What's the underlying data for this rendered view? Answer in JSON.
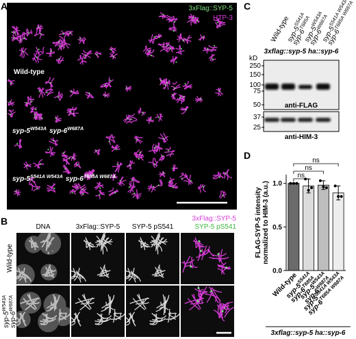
{
  "panel_a": {
    "letter": "A",
    "channels": [
      "3xFlag::SYP-5",
      "HTP-3"
    ],
    "genotypes": [
      "Wild-type",
      [
        {
          "gene": "syp-5",
          "allele": "W543A"
        },
        {
          "gene": "syp-6",
          "allele": "W687A"
        }
      ],
      [
        {
          "gene": "syp-5",
          "allele": "S541A W543A"
        },
        {
          "gene": "syp-6",
          "allele": "T685A W687A"
        }
      ]
    ]
  },
  "panel_b": {
    "letter": "B",
    "columns": [
      "DNA",
      "3xFlag::SYP-5",
      "SYP-5 pS541"
    ],
    "merge": [
      "3xFlag::SYP-5",
      "SYP-5 pS541"
    ],
    "rows": [
      "Wild-type",
      [
        {
          "gene": "syp-5",
          "allele": "W543A"
        },
        {
          "gene": "syp-6",
          "allele": "W687A"
        }
      ]
    ]
  },
  "panel_c": {
    "letter": "C",
    "lanes": [
      "Wild-type",
      [
        {
          "gene": "syp-5",
          "allele": "S541A"
        },
        {
          "gene": "syp-6",
          "allele": "T685A"
        }
      ],
      [
        {
          "gene": "syp-5",
          "allele": "W543A"
        },
        {
          "gene": "syp-6",
          "allele": "W687A"
        }
      ],
      [
        {
          "gene": "syp-5",
          "allele": "S541A W543A"
        },
        {
          "gene": "syp-6",
          "allele": "T685A W687A"
        }
      ]
    ],
    "strain": "3xflag::syp-5 ha::syp-6",
    "unit": "kD",
    "markers_flag": [
      250,
      150,
      100,
      75,
      50
    ],
    "markers_him3": [
      37,
      25
    ],
    "antibodies": [
      "anti-FLAG",
      "anti-HIM-3"
    ]
  },
  "chart_data": {
    "type": "bar",
    "letter": "D",
    "ylabel": [
      "FLAG-SYP-5 intensity",
      "normalized to HIM-3 (a.u.)"
    ],
    "categories": [
      "Wild-type",
      [
        {
          "gene": "syp-5",
          "allele": "S541A"
        },
        {
          "gene": "syp-6",
          "allele": "T685A"
        }
      ],
      [
        {
          "gene": "syp-5",
          "allele": "W543A"
        },
        {
          "gene": "syp-6",
          "allele": "W687A"
        }
      ],
      [
        {
          "gene": "syp-5",
          "allele": "S541A W543A"
        },
        {
          "gene": "syp-6",
          "allele": "T685A W687A"
        }
      ]
    ],
    "values": [
      1.0,
      0.97,
      0.98,
      0.89
    ],
    "errors": [
      0,
      0.08,
      0.05,
      0.08
    ],
    "points": [
      [
        1.0,
        1.0,
        1.0
      ],
      [
        1.05,
        0.92,
        0.95
      ],
      [
        1.03,
        0.96,
        0.95
      ],
      [
        0.97,
        0.85,
        0.85
      ]
    ],
    "colors": [
      "#6b6b6b",
      "#dcdcdc",
      "#bdbdbd",
      "#eeeeee"
    ],
    "ylim": [
      0,
      1.1
    ],
    "yticks": [
      {
        "value": 0,
        "label": "0.0"
      },
      {
        "value": 0.5,
        "label": "0.5"
      },
      {
        "value": 1,
        "label": "1.0"
      }
    ],
    "annotations": [
      "ns",
      "ns",
      "ns"
    ],
    "strain": "3xflag::syp-5 ha::syp-6"
  }
}
